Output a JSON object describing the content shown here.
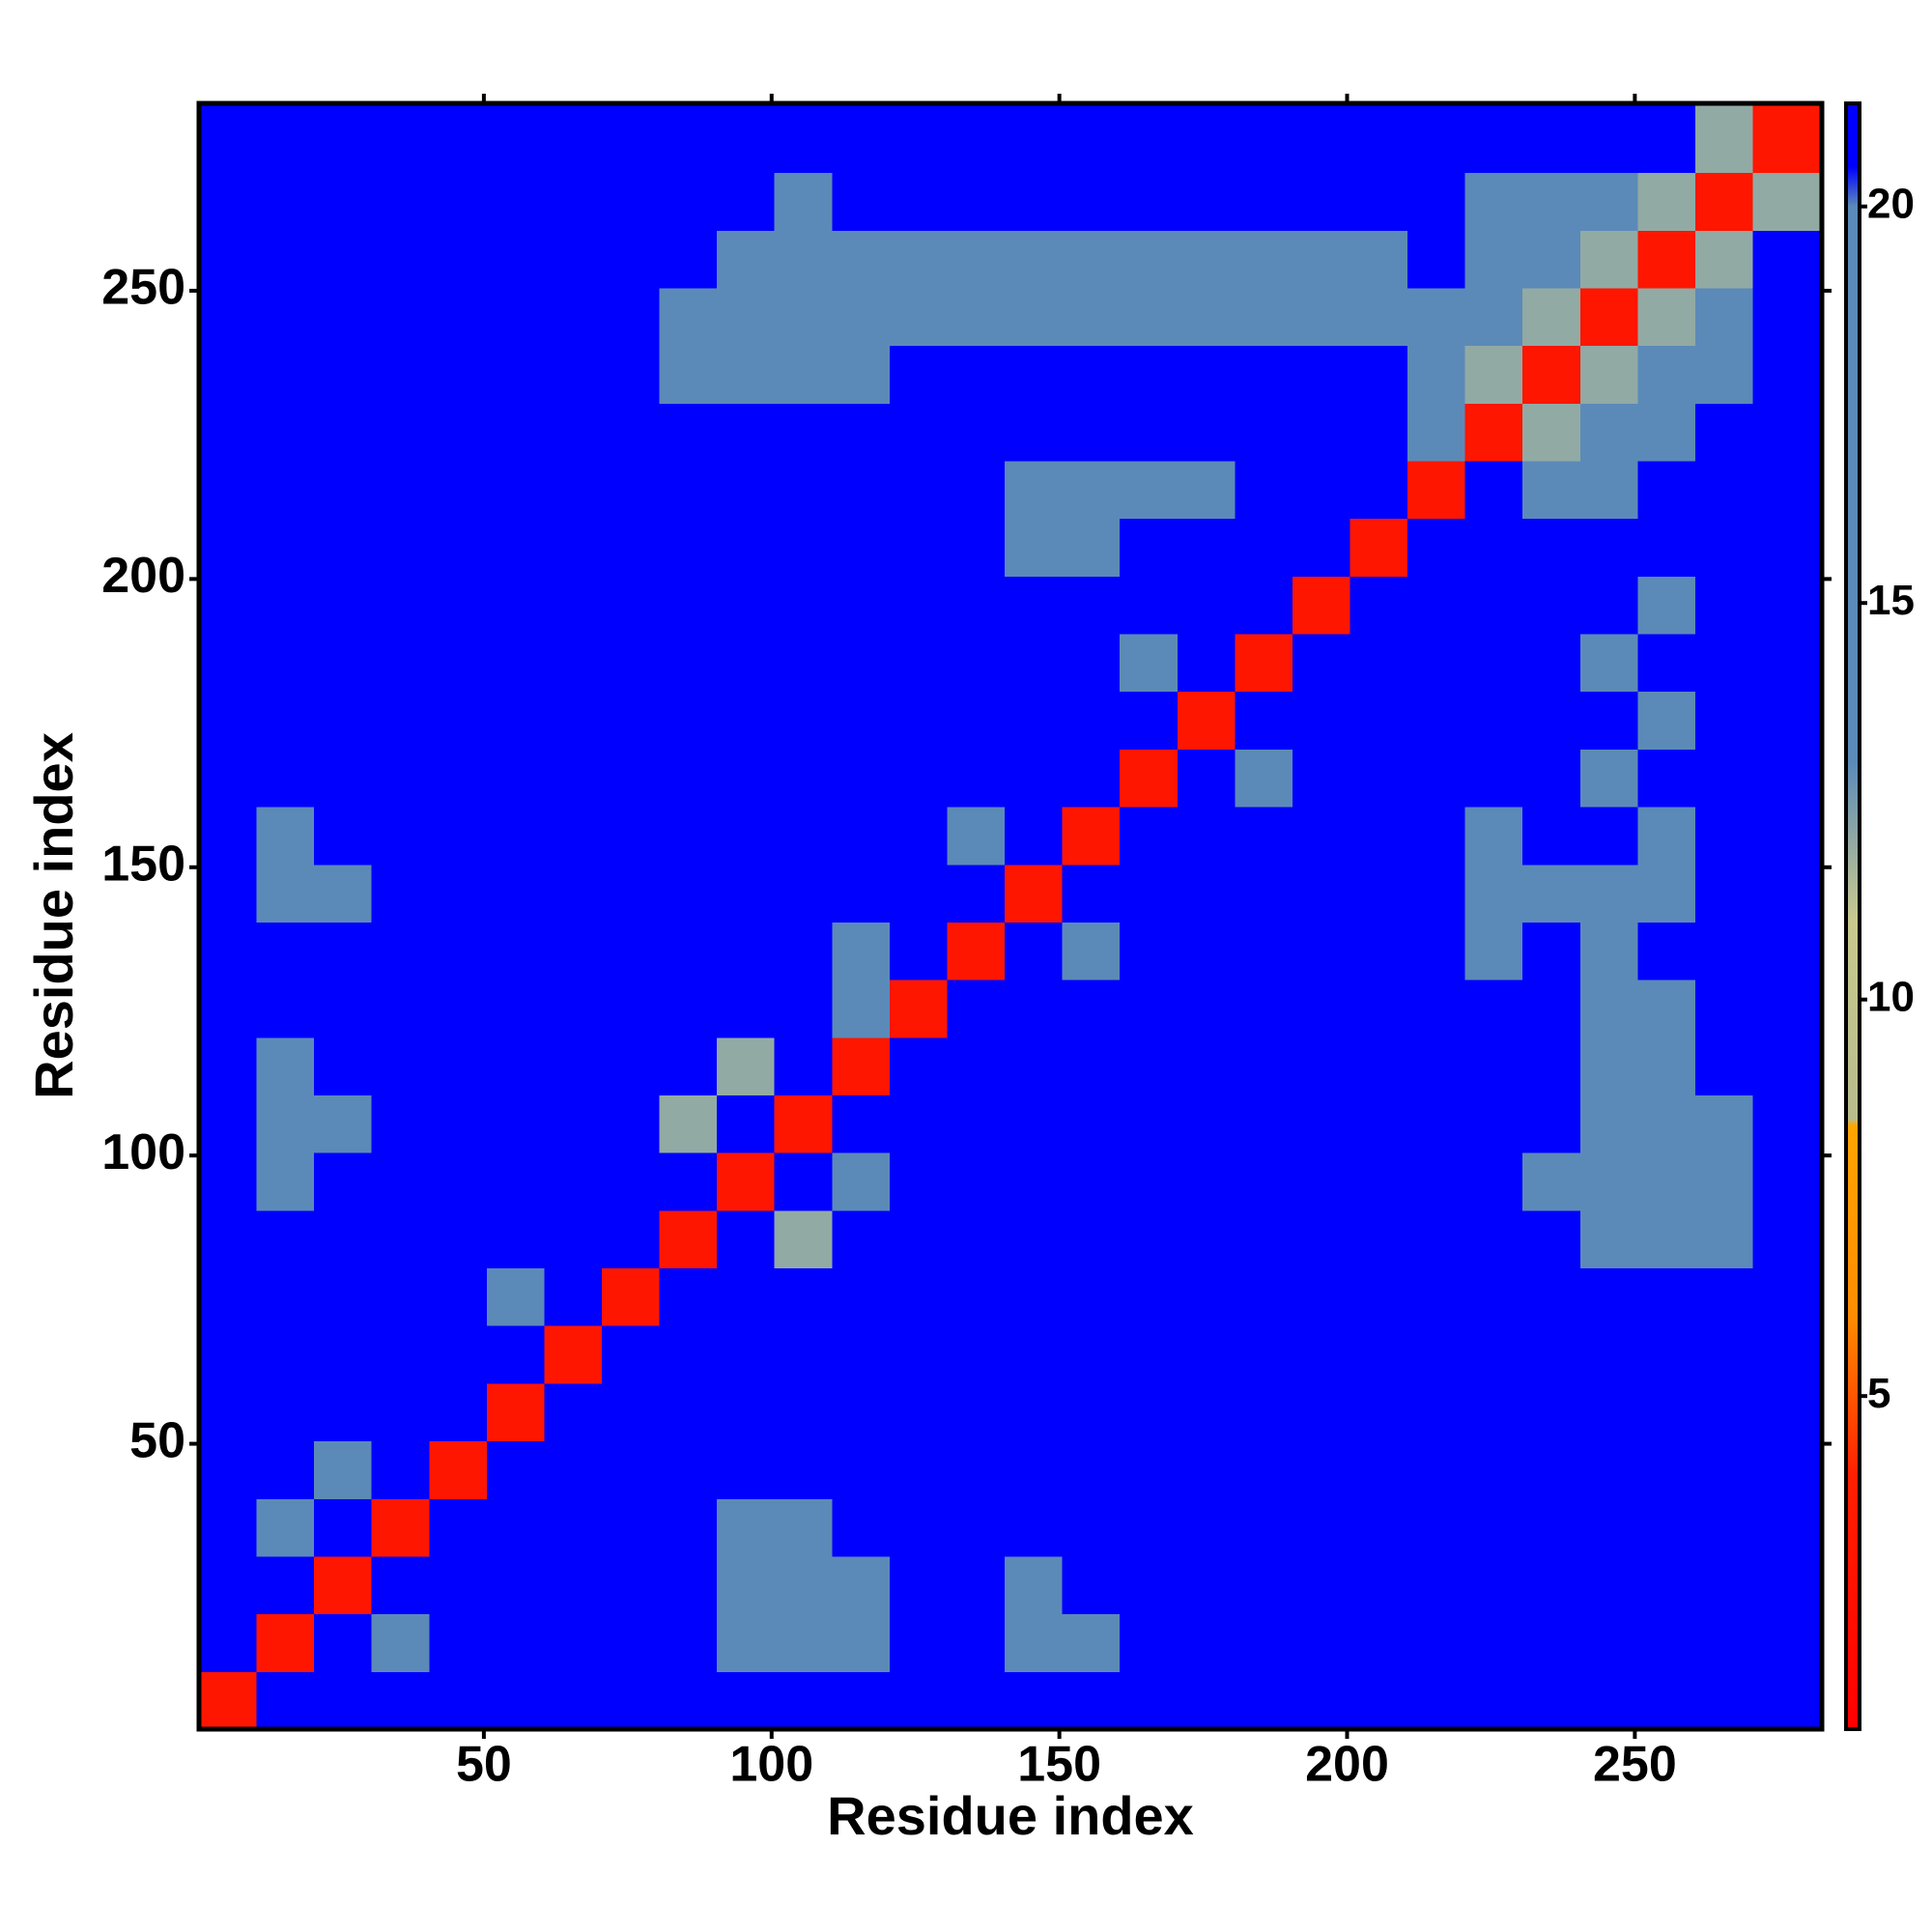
{
  "chart_data": {
    "type": "heatmap",
    "xlabel": "Residue index",
    "ylabel": "Residue index",
    "xlim": [
      0.5,
      282.5
    ],
    "ylim": [
      0.5,
      282.5
    ],
    "xticks": [
      50,
      100,
      150,
      200,
      250
    ],
    "yticks": [
      50,
      100,
      150,
      200,
      250
    ],
    "xbins": [
      0.5,
      10.5,
      20.5,
      30.5,
      40.5,
      50.5,
      60.5,
      70.5,
      80.5,
      90.5,
      100.5,
      110.5,
      120.5,
      130.5,
      140.5,
      150.5,
      160.5,
      170.5,
      180.5,
      190.5,
      200.5,
      210.5,
      220.5,
      230.5,
      240.5,
      250.5,
      260.5,
      270.5,
      282.5
    ],
    "ybins": [
      0.5,
      10.5,
      20.5,
      30.5,
      40.5,
      50.5,
      60.5,
      70.5,
      80.5,
      90.5,
      100.5,
      110.5,
      120.5,
      130.5,
      140.5,
      150.5,
      160.5,
      170.5,
      180.5,
      190.5,
      200.5,
      210.5,
      220.5,
      230.5,
      240.5,
      250.5,
      260.5,
      270.5,
      282.5
    ],
    "zlim": [
      0.8,
      21.3
    ],
    "zticks": [
      5,
      10,
      15,
      20
    ],
    "colorscale": [
      [
        0.8,
        "#ff0000"
      ],
      [
        4,
        "#ff2000"
      ],
      [
        6,
        "#ff8c00"
      ],
      [
        8.4,
        "#ffa500"
      ],
      [
        8.5,
        "#b8bc8c"
      ],
      [
        11,
        "#c9c98f"
      ],
      [
        13,
        "#5b8ab8"
      ],
      [
        20,
        "#5b8ab8"
      ],
      [
        20.5,
        "#0000ff"
      ],
      [
        21.3,
        "#0000ff"
      ]
    ],
    "z": [
      [
        3,
        21,
        21,
        21,
        21,
        21,
        21,
        21,
        21,
        21,
        21,
        21,
        21,
        21,
        21,
        21,
        21,
        21,
        21,
        21,
        21,
        21,
        21,
        21,
        21,
        21,
        21,
        21
      ],
      [
        21,
        3,
        21,
        16,
        21,
        21,
        21,
        21,
        21,
        19,
        19,
        19,
        21,
        21,
        19,
        19,
        21,
        21,
        21,
        21,
        21,
        21,
        21,
        21,
        21,
        21,
        21,
        21
      ],
      [
        21,
        21,
        3,
        21,
        21,
        21,
        21,
        21,
        21,
        19,
        19,
        19,
        21,
        21,
        19,
        21,
        21,
        21,
        21,
        21,
        21,
        21,
        21,
        21,
        21,
        21,
        21,
        21
      ],
      [
        21,
        16,
        21,
        3,
        21,
        21,
        21,
        21,
        21,
        19,
        19,
        21,
        21,
        21,
        21,
        21,
        21,
        21,
        21,
        21,
        21,
        21,
        21,
        21,
        21,
        21,
        21,
        21
      ],
      [
        21,
        21,
        16,
        21,
        3,
        21,
        21,
        21,
        21,
        21,
        21,
        21,
        21,
        21,
        21,
        21,
        21,
        21,
        21,
        21,
        21,
        21,
        21,
        21,
        21,
        21,
        21,
        21
      ],
      [
        21,
        21,
        21,
        21,
        21,
        3,
        21,
        21,
        21,
        21,
        21,
        21,
        21,
        21,
        21,
        21,
        21,
        21,
        21,
        21,
        21,
        21,
        21,
        21,
        21,
        21,
        21,
        21
      ],
      [
        21,
        21,
        21,
        21,
        21,
        21,
        3,
        21,
        21,
        21,
        21,
        21,
        21,
        21,
        21,
        21,
        21,
        21,
        21,
        21,
        21,
        21,
        21,
        21,
        21,
        21,
        21,
        21
      ],
      [
        21,
        21,
        21,
        21,
        21,
        18,
        21,
        3,
        21,
        21,
        21,
        21,
        21,
        21,
        21,
        21,
        21,
        21,
        21,
        21,
        21,
        21,
        21,
        21,
        21,
        21,
        21,
        21
      ],
      [
        21,
        21,
        21,
        21,
        21,
        21,
        21,
        21,
        3,
        21,
        12,
        21,
        21,
        21,
        21,
        21,
        21,
        21,
        21,
        21,
        21,
        21,
        21,
        21,
        17,
        17,
        17,
        21
      ],
      [
        21,
        19,
        21,
        21,
        21,
        21,
        21,
        21,
        21,
        3,
        21,
        13,
        21,
        21,
        21,
        21,
        21,
        21,
        21,
        21,
        21,
        21,
        21,
        17,
        17,
        17,
        17,
        21
      ],
      [
        21,
        19,
        19,
        21,
        21,
        21,
        21,
        21,
        12,
        21,
        3,
        21,
        21,
        21,
        21,
        21,
        21,
        21,
        21,
        21,
        21,
        21,
        21,
        21,
        17,
        17,
        17,
        21
      ],
      [
        21,
        19,
        21,
        21,
        21,
        21,
        21,
        21,
        21,
        12,
        21,
        3,
        21,
        21,
        21,
        21,
        21,
        21,
        21,
        21,
        21,
        21,
        21,
        21,
        17,
        17,
        21,
        21
      ],
      [
        21,
        21,
        21,
        21,
        21,
        21,
        21,
        21,
        21,
        21,
        21,
        17,
        3,
        21,
        21,
        21,
        21,
        21,
        21,
        21,
        21,
        21,
        21,
        21,
        19,
        19,
        21,
        21
      ],
      [
        21,
        21,
        21,
        21,
        21,
        21,
        21,
        21,
        21,
        21,
        21,
        17,
        21,
        3,
        21,
        17,
        21,
        21,
        21,
        21,
        21,
        21,
        18,
        21,
        19,
        21,
        21,
        21
      ],
      [
        21,
        19,
        19,
        21,
        21,
        21,
        21,
        21,
        21,
        21,
        21,
        21,
        21,
        21,
        3,
        21,
        21,
        21,
        21,
        21,
        21,
        21,
        18,
        18,
        19,
        19,
        21,
        21
      ],
      [
        21,
        19,
        21,
        21,
        21,
        21,
        21,
        21,
        21,
        21,
        21,
        21,
        21,
        17,
        21,
        3,
        21,
        21,
        21,
        21,
        21,
        21,
        18,
        21,
        21,
        19,
        21,
        21
      ],
      [
        21,
        21,
        21,
        21,
        21,
        21,
        21,
        21,
        21,
        21,
        21,
        21,
        21,
        21,
        21,
        21,
        3,
        21,
        17,
        21,
        21,
        21,
        21,
        21,
        19,
        21,
        21,
        21
      ],
      [
        21,
        21,
        21,
        21,
        21,
        21,
        21,
        21,
        21,
        21,
        21,
        21,
        21,
        21,
        21,
        21,
        21,
        3,
        21,
        21,
        21,
        21,
        21,
        21,
        21,
        19,
        21,
        21
      ],
      [
        21,
        21,
        21,
        21,
        21,
        21,
        21,
        21,
        21,
        21,
        21,
        21,
        21,
        21,
        21,
        21,
        18,
        21,
        3,
        21,
        21,
        21,
        21,
        21,
        19,
        21,
        21,
        21
      ],
      [
        21,
        21,
        21,
        21,
        21,
        21,
        21,
        21,
        21,
        21,
        21,
        21,
        21,
        21,
        21,
        21,
        21,
        21,
        21,
        3,
        21,
        21,
        21,
        21,
        21,
        19,
        21,
        21
      ],
      [
        21,
        21,
        21,
        21,
        21,
        21,
        21,
        21,
        21,
        21,
        21,
        21,
        21,
        21,
        19,
        19,
        21,
        21,
        21,
        21,
        3,
        21,
        21,
        21,
        21,
        21,
        21,
        21
      ],
      [
        21,
        21,
        21,
        21,
        21,
        21,
        21,
        21,
        21,
        21,
        21,
        21,
        21,
        21,
        19,
        19,
        19,
        19,
        21,
        21,
        21,
        3,
        21,
        14,
        14,
        21,
        21,
        21
      ],
      [
        21,
        21,
        21,
        21,
        21,
        21,
        21,
        21,
        21,
        21,
        21,
        21,
        21,
        21,
        21,
        21,
        21,
        21,
        21,
        21,
        21,
        14,
        3,
        12,
        14,
        14,
        21,
        21
      ],
      [
        21,
        21,
        21,
        21,
        21,
        21,
        21,
        21,
        17,
        17,
        17,
        17,
        21,
        21,
        21,
        21,
        21,
        21,
        21,
        21,
        21,
        14,
        12,
        3,
        12,
        14,
        14,
        21
      ],
      [
        21,
        21,
        21,
        21,
        21,
        21,
        21,
        21,
        17,
        17,
        17,
        17,
        19,
        19,
        19,
        19,
        19,
        19,
        19,
        19,
        19,
        19,
        14,
        12,
        3,
        12,
        14,
        21
      ],
      [
        21,
        21,
        21,
        21,
        21,
        21,
        21,
        21,
        21,
        17,
        17,
        17,
        19,
        19,
        19,
        19,
        19,
        19,
        19,
        19,
        19,
        21,
        14,
        14,
        12,
        3,
        12,
        21
      ],
      [
        21,
        21,
        21,
        21,
        21,
        21,
        21,
        21,
        21,
        21,
        17,
        21,
        21,
        21,
        21,
        21,
        21,
        21,
        21,
        21,
        21,
        21,
        14,
        14,
        14,
        12,
        3,
        12
      ],
      [
        21,
        21,
        21,
        21,
        21,
        21,
        21,
        21,
        21,
        21,
        21,
        21,
        21,
        21,
        21,
        21,
        21,
        21,
        21,
        21,
        21,
        21,
        21,
        21,
        21,
        21,
        12,
        3
      ]
    ]
  }
}
